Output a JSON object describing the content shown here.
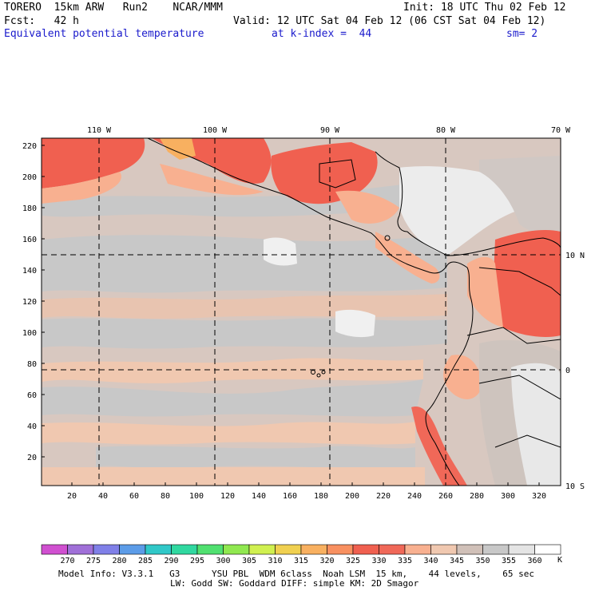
{
  "header": {
    "line1_left": "TORERO  15km ARW   Run2    NCAR/MMM",
    "line1_right": "Init: 18 UTC Thu 02 Feb 12",
    "line2_left": "Fcst:   42 h",
    "line2_right": "Valid: 12 UTC Sat 04 Feb 12 (06 CST Sat 04 Feb 12)",
    "field_name": "Equivalent potential temperature",
    "level": "at k-index =  44",
    "smoothing": "sm= 2"
  },
  "map": {
    "lon_labels": [
      "110 W",
      "100 W",
      "90 W",
      "80 W",
      "70 W"
    ],
    "lat_labels": [
      "10 N",
      "0",
      "10 S"
    ],
    "y_ticks": [
      "20",
      "40",
      "60",
      "80",
      "100",
      "120",
      "140",
      "160",
      "180",
      "200",
      "220"
    ],
    "x_ticks": [
      "20",
      "40",
      "60",
      "80",
      "100",
      "120",
      "140",
      "160",
      "180",
      "200",
      "220",
      "240",
      "260",
      "280",
      "300",
      "320"
    ]
  },
  "colorbar": {
    "labels": [
      "270",
      "275",
      "280",
      "285",
      "290",
      "295",
      "300",
      "305",
      "310",
      "315",
      "320",
      "325",
      "330",
      "335",
      "340",
      "345",
      "350",
      "355",
      "360"
    ],
    "unit": "K",
    "colors": [
      "#d050d0",
      "#a070d8",
      "#8080e8",
      "#5c9ce8",
      "#30c8c8",
      "#30d8a0",
      "#50e070",
      "#90e850",
      "#d0f050",
      "#f0d050",
      "#f8b060",
      "#f89060",
      "#f06050",
      "#f06858",
      "#f8b090",
      "#f0c8b0",
      "#d0c0b8",
      "#c8c8c8",
      "#e4e4e4",
      "#ffffff"
    ]
  },
  "footer": {
    "line1": "Model Info: V3.3.1   G3      YSU PBL  WDM 6class  Noah LSM  15 km,    44 levels,    65 sec",
    "line2": "LW: Godd SW: Goddard DIFF: simple KM: 2D Smagor"
  }
}
